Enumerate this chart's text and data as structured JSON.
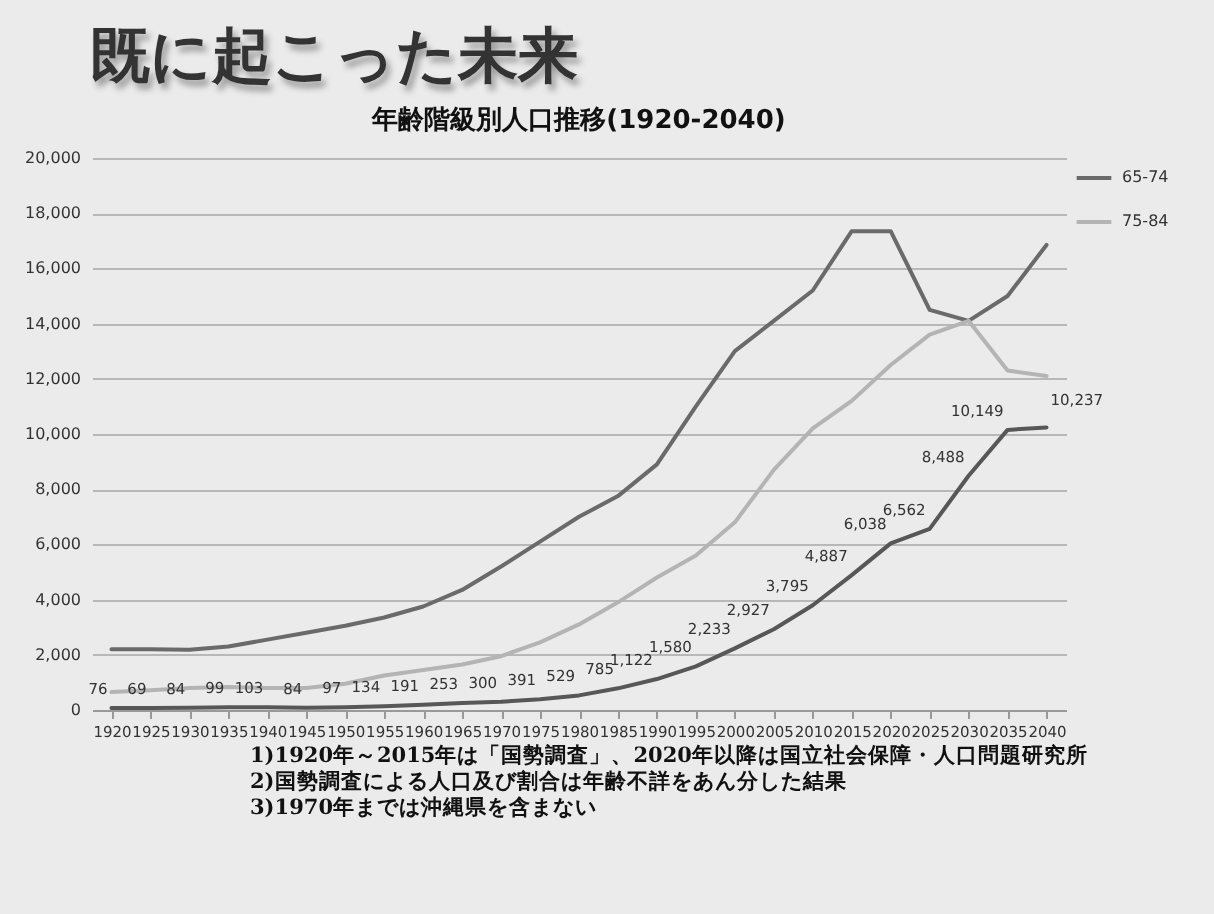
{
  "chart_data": {
    "type": "line",
    "title": "既に起こった未来",
    "subtitle": "年齢階級別人口推移(1920-2040)",
    "categories": [
      "1920",
      "1925",
      "1930",
      "1935",
      "1940",
      "1945",
      "1950",
      "1955",
      "1960",
      "1965",
      "1970",
      "1975",
      "1980",
      "1985",
      "1990",
      "1995",
      "2000",
      "2005",
      "2010",
      "2015",
      "2020",
      "2025",
      "2030",
      "2035",
      "2040"
    ],
    "series": [
      {
        "name": "65-74",
        "color": "#6a6a6a",
        "values": [
          2200,
          2200,
          2180,
          2300,
          2550,
          2800,
          3050,
          3350,
          3750,
          4350,
          5200,
          6100,
          7000,
          7750,
          8900,
          11000,
          13000,
          14100,
          15200,
          17350,
          17350,
          14500,
          14100,
          15000,
          16850
        ]
      },
      {
        "name": "75-84",
        "color": "#b4b4b4",
        "values": [
          650,
          720,
          800,
          830,
          800,
          800,
          950,
          1250,
          1450,
          1650,
          1950,
          2450,
          3100,
          3900,
          4800,
          5600,
          6800,
          8700,
          10200,
          11200,
          12500,
          13600,
          14100,
          12300,
          12100
        ]
      },
      {
        "color": "#575757",
        "values": [
          76,
          69,
          84,
          99,
          103,
          84,
          97,
          134,
          191,
          253,
          300,
          391,
          529,
          785,
          1122,
          1580,
          2233,
          2927,
          3795,
          4887,
          6038,
          6562,
          8488,
          10149,
          10237
        ],
        "value_labels": [
          "76",
          "69",
          "84",
          "99",
          "103",
          "84",
          "97",
          "134",
          "191",
          "253",
          "300",
          "391",
          "529",
          "785",
          "1,122",
          "1,580",
          "2,233",
          "2,927",
          "3,795",
          "4,887",
          "6,038",
          "6,562",
          "8,488",
          "10,149",
          "10,237"
        ]
      }
    ],
    "ylim": [
      0,
      20000
    ],
    "yticks": [
      0,
      {
        "value": 2000,
        "label": "2,000"
      },
      {
        "value": 4000,
        "label": "4,000"
      },
      {
        "value": 6000,
        "label": "6,000"
      },
      {
        "value": 8000,
        "label": "8,000"
      },
      {
        "value": 10000,
        "label": "10,000"
      },
      {
        "value": 12000,
        "label": "12,000"
      },
      {
        "value": 14000,
        "label": "14,000"
      },
      {
        "value": 16000,
        "label": "16,000"
      },
      {
        "value": 18000,
        "label": "18,000"
      },
      {
        "value": 20000,
        "label": "20,000"
      }
    ],
    "grid": "y",
    "legend": "right",
    "line_style": "solid",
    "marker": "none",
    "annotations": [
      "1)1920年～2015年は「国勢調査」、2020年以降は国立社会保障・人口問題研究所",
      "2)国勢調査による人口及び割合は年齢不詳をあん分した結果",
      "3)1970年までは沖縄県を含まない"
    ]
  }
}
